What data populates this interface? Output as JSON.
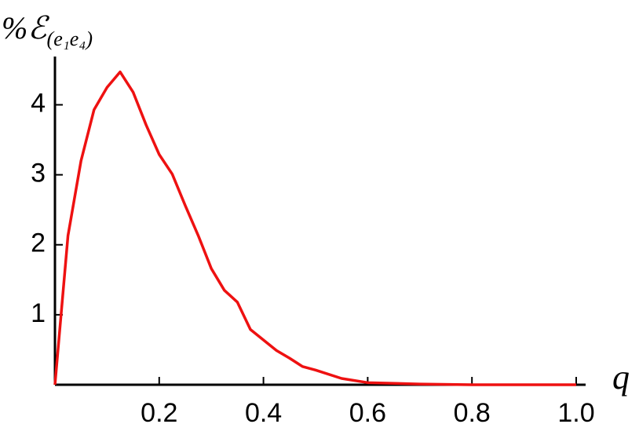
{
  "chart_data": {
    "type": "line",
    "ylabel": "%ℰ",
    "ylabel_subscript": "(e₁e₄)",
    "xlabel": "q",
    "x": [
      0,
      0.025,
      0.05,
      0.075,
      0.1,
      0.125,
      0.15,
      0.175,
      0.2,
      0.225,
      0.25,
      0.275,
      0.3,
      0.325,
      0.35,
      0.375,
      0.4,
      0.425,
      0.45,
      0.475,
      0.5,
      0.55,
      0.6,
      0.7,
      0.8,
      1.0
    ],
    "series": [
      {
        "color": "#ee1111",
        "values": [
          0,
          2.13,
          3.2,
          3.93,
          4.25,
          4.47,
          4.18,
          3.71,
          3.29,
          3.01,
          2.56,
          2.13,
          1.66,
          1.35,
          1.18,
          0.79,
          0.64,
          0.49,
          0.38,
          0.26,
          0.21,
          0.09,
          0.03,
          0.01,
          0,
          0
        ]
      }
    ],
    "xlim": [
      0,
      1.0
    ],
    "ylim": [
      0,
      4.6
    ],
    "xticks": [
      0.2,
      0.4,
      0.6,
      0.8,
      {
        "value": 1.0,
        "label": "1.0"
      }
    ],
    "yticks": [
      1,
      2,
      3,
      4
    ]
  }
}
